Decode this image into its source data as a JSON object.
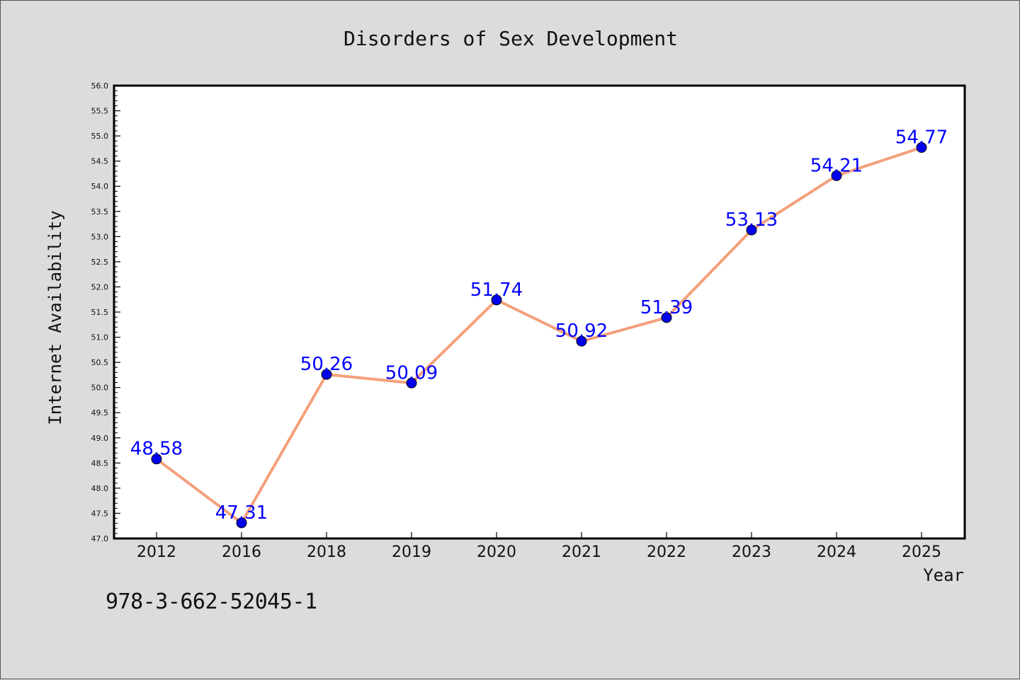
{
  "chart_data": {
    "type": "line",
    "title": "Disorders of Sex Development",
    "xlabel": "Year",
    "ylabel": "Internet Availability",
    "categories": [
      "2012",
      "2016",
      "2018",
      "2019",
      "2020",
      "2021",
      "2022",
      "2023",
      "2024",
      "2025"
    ],
    "series": [
      {
        "values": [
          48.58,
          47.31,
          50.26,
          50.09,
          51.74,
          50.92,
          51.39,
          53.13,
          54.21,
          54.77
        ],
        "line_color": "#f4a07c",
        "marker_color": "#0000ee",
        "label_color": "#0000ff"
      }
    ],
    "ylim": [
      47.0,
      56.0
    ],
    "y_ticks": [
      "47.0",
      "47.5",
      "48.0",
      "48.5",
      "49.0",
      "49.5",
      "50.0",
      "50.5",
      "51.0",
      "51.5",
      "52.0",
      "52.5",
      "53.0",
      "53.5",
      "54.0",
      "54.5",
      "55.0",
      "55.5",
      "56.0"
    ],
    "data_labels": [
      "48.58",
      "47.31",
      "50.26",
      "50.09",
      "51.74",
      "50.92",
      "51.39",
      "53.13",
      "54.21",
      "54.77"
    ],
    "grid": false,
    "legend": "none"
  },
  "footer_text": "978-3-662-52045-1"
}
